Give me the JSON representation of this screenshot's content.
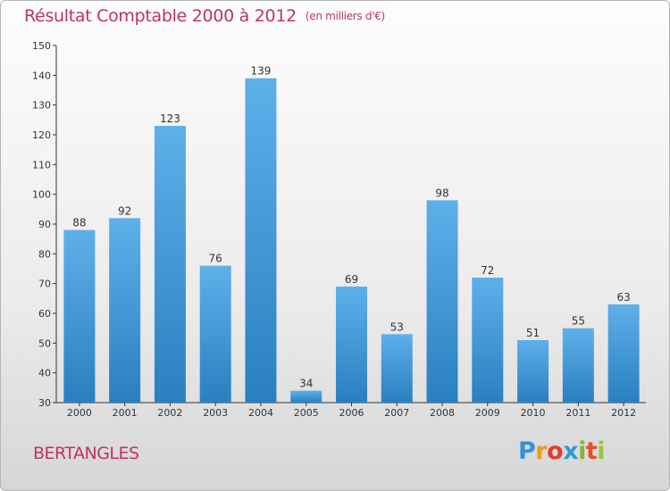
{
  "header": {
    "title": "Résultat Comptable 2000 à 2012",
    "unit": "(en milliers d'€)"
  },
  "footer": {
    "commune": "BERTANGLES",
    "logo_letters": [
      "P",
      "r",
      "o",
      "x",
      "i",
      "t",
      "i"
    ],
    "logo_colors": [
      "#3b8fd9",
      "#f29a1e",
      "#e23b2e",
      "#2e9bd6",
      "#7fb830",
      "#e5502a",
      "#9ac43a"
    ]
  },
  "colors": {
    "title": "#c0335e",
    "bar_top": "#5eb0ea",
    "bar_bottom": "#2a7fc0",
    "axis": "#333333"
  },
  "chart_data": {
    "type": "bar",
    "categories": [
      "2000",
      "2001",
      "2002",
      "2003",
      "2004",
      "2005",
      "2006",
      "2007",
      "2008",
      "2009",
      "2010",
      "2011",
      "2012"
    ],
    "values": [
      88,
      92,
      123,
      76,
      139,
      34,
      69,
      53,
      98,
      72,
      51,
      55,
      63
    ],
    "data_labels": [
      "88",
      "92",
      "123",
      "76",
      "139",
      "34",
      "69",
      "53",
      "98",
      "72",
      "51",
      "55",
      "63"
    ],
    "ylim": [
      30,
      150
    ],
    "yticks": [
      30,
      40,
      50,
      60,
      70,
      80,
      90,
      100,
      110,
      120,
      130,
      140,
      150
    ],
    "ytick_labels": [
      "30",
      "40",
      "50",
      "60",
      "70",
      "80",
      "90",
      "100",
      "110",
      "120",
      "130",
      "140",
      "150"
    ],
    "grid": false,
    "xlabel": "",
    "ylabel": ""
  }
}
